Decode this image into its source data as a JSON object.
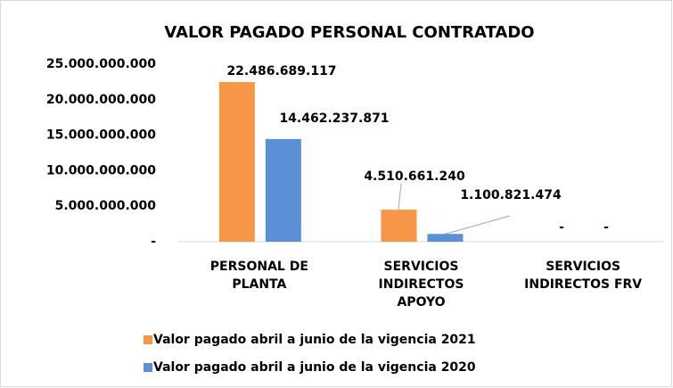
{
  "chart_data": {
    "type": "bar",
    "title": "VALOR PAGADO PERSONAL CONTRATADO",
    "categories": [
      "PERSONAL DE PLANTA",
      "SERVICIOS INDIRECTOS APOYO",
      "SERVICIOS INDIRECTOS FRV"
    ],
    "series": [
      {
        "name": "Valor pagado abril a junio de la vigencia 2021",
        "color": "#f79646",
        "values": [
          22486689117,
          4510661240,
          0
        ],
        "value_labels": [
          "22.486.689.117",
          "4.510.661.240",
          "-"
        ]
      },
      {
        "name": "Valor pagado  abril a junio de la vigencia 2020",
        "color": "#5b8fd6",
        "values": [
          14462237871,
          1100821474,
          0
        ],
        "value_labels": [
          "14.462.237.871",
          "1.100.821.474",
          "-"
        ]
      }
    ],
    "ylim": [
      0,
      25000000000
    ],
    "yticks": [
      {
        "value": 0,
        "label": "-"
      },
      {
        "value": 5000000000,
        "label": "5.000.000.000"
      },
      {
        "value": 10000000000,
        "label": "10.000.000.000"
      },
      {
        "value": 15000000000,
        "label": "15.000.000.000"
      },
      {
        "value": 20000000000,
        "label": "20.000.000.000"
      },
      {
        "value": 25000000000,
        "label": "25.000.000.000"
      }
    ],
    "grid": false,
    "legend": "bottom"
  }
}
